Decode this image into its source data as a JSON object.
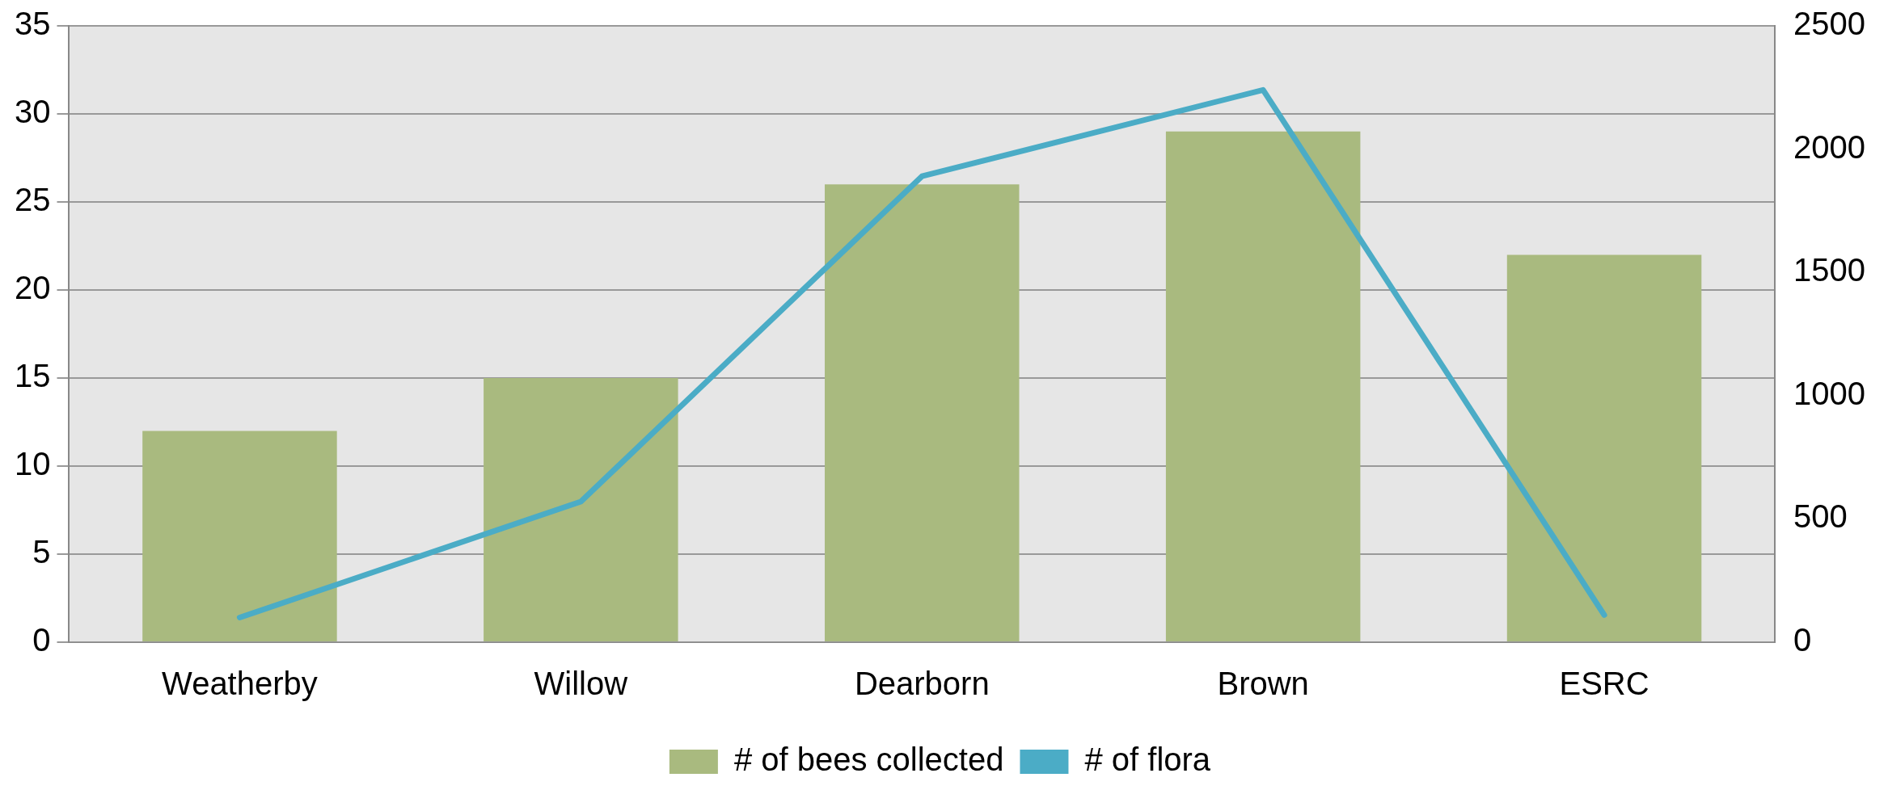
{
  "chart_data": {
    "type": "bar",
    "categories": [
      "Weatherby",
      "Willow",
      "Dearborn",
      "Brown",
      "ESRC"
    ],
    "series": [
      {
        "name": "# of bees collected",
        "color": "#a9ba7f",
        "values": [
          12,
          15,
          26,
          29,
          22
        ]
      },
      {
        "name": "# of flora",
        "type": "line",
        "axis": "y2",
        "color": "#4bacc6",
        "values": [
          100,
          570,
          1890,
          2240,
          110
        ]
      }
    ],
    "ylim": [
      0,
      35
    ],
    "yticks": [
      0,
      5,
      10,
      15,
      20,
      25,
      30,
      35
    ],
    "y2lim": [
      0,
      2500
    ],
    "y2ticks": [
      0,
      500,
      1000,
      1500,
      2000,
      2500
    ],
    "grid": "y",
    "legend": "bottom",
    "marker": "none"
  }
}
